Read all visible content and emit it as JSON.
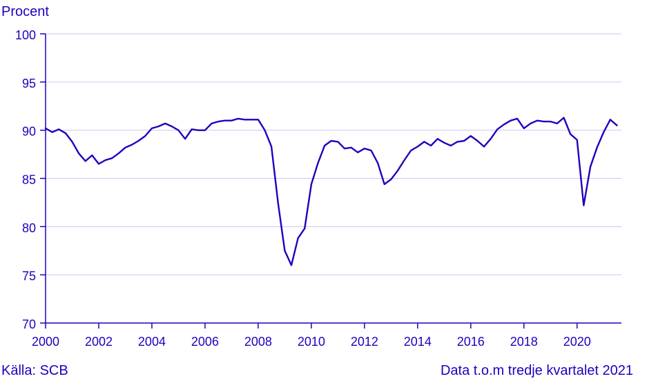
{
  "chart_data": {
    "type": "line",
    "ylabel": "Procent",
    "ylim": [
      70,
      100
    ],
    "yticks": [
      70,
      75,
      80,
      85,
      90,
      95,
      100
    ],
    "xlim": [
      2000,
      2021.67
    ],
    "xticks": [
      2000,
      2002,
      2004,
      2006,
      2008,
      2010,
      2012,
      2014,
      2016,
      2018,
      2020
    ],
    "grid": "horizontal",
    "series": [
      {
        "color": "#1e00be",
        "x": [
          2000.0,
          2000.25,
          2000.5,
          2000.75,
          2001.0,
          2001.25,
          2001.5,
          2001.75,
          2002.0,
          2002.25,
          2002.5,
          2002.75,
          2003.0,
          2003.25,
          2003.5,
          2003.75,
          2004.0,
          2004.25,
          2004.5,
          2004.75,
          2005.0,
          2005.25,
          2005.5,
          2005.75,
          2006.0,
          2006.25,
          2006.5,
          2006.75,
          2007.0,
          2007.25,
          2007.5,
          2007.75,
          2008.0,
          2008.25,
          2008.5,
          2008.75,
          2009.0,
          2009.25,
          2009.5,
          2009.75,
          2010.0,
          2010.25,
          2010.5,
          2010.75,
          2011.0,
          2011.25,
          2011.5,
          2011.75,
          2012.0,
          2012.25,
          2012.5,
          2012.75,
          2013.0,
          2013.25,
          2013.5,
          2013.75,
          2014.0,
          2014.25,
          2014.5,
          2014.75,
          2015.0,
          2015.25,
          2015.5,
          2015.75,
          2016.0,
          2016.25,
          2016.5,
          2016.75,
          2017.0,
          2017.25,
          2017.5,
          2017.75,
          2018.0,
          2018.25,
          2018.5,
          2018.75,
          2019.0,
          2019.25,
          2019.5,
          2019.75,
          2020.0,
          2020.25,
          2020.5,
          2020.75,
          2021.0,
          2021.25,
          2021.5
        ],
        "values": [
          90.2,
          89.8,
          90.1,
          89.7,
          88.8,
          87.6,
          86.8,
          87.4,
          86.5,
          86.9,
          87.1,
          87.6,
          88.2,
          88.5,
          88.9,
          89.4,
          90.2,
          90.4,
          90.7,
          90.4,
          90.0,
          89.1,
          90.1,
          90.0,
          90.0,
          90.7,
          90.9,
          91.0,
          91.0,
          91.2,
          91.1,
          91.1,
          91.1,
          90.0,
          88.3,
          82.4,
          77.5,
          76.0,
          78.8,
          79.8,
          84.4,
          86.6,
          88.4,
          88.9,
          88.8,
          88.1,
          88.2,
          87.7,
          88.1,
          87.9,
          86.6,
          84.4,
          84.9,
          85.8,
          86.9,
          87.9,
          88.3,
          88.8,
          88.4,
          89.1,
          88.7,
          88.4,
          88.8,
          88.9,
          89.4,
          88.9,
          88.3,
          89.1,
          90.1,
          90.6,
          91.0,
          91.2,
          90.2,
          90.7,
          91.0,
          90.9,
          90.9,
          90.7,
          91.3,
          89.6,
          89.0,
          82.2,
          86.2,
          88.2,
          89.8,
          91.1,
          90.5
        ]
      }
    ]
  },
  "footer": {
    "source": "Källa: SCB",
    "note": "Data t.o.m tredje kvartalet 2021"
  }
}
